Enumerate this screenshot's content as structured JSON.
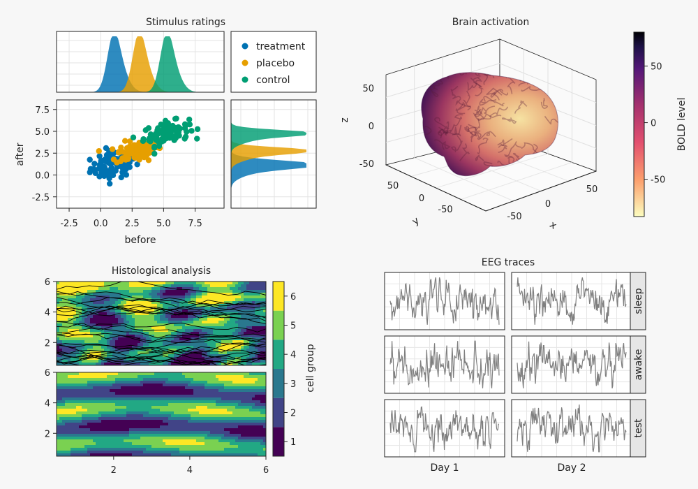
{
  "colors": {
    "treatment": "#0072b2",
    "placebo": "#e69f00",
    "control": "#009e73",
    "trace": "#7f7f7f",
    "strip_bg": "#e6e6e6"
  },
  "chart_data": [
    {
      "type": "scatter",
      "title": "Stimulus ratings",
      "xlabel": "before",
      "ylabel": "after",
      "xlim": [
        -3.5,
        9.8
      ],
      "ylim": [
        -3.8,
        8.6
      ],
      "xticks": [
        "-2.5",
        "0.0",
        "2.5",
        "5.0",
        "7.5"
      ],
      "yticks": [
        "-2.5",
        "0.0",
        "2.5",
        "5.0",
        "7.5"
      ],
      "legend": [
        "treatment",
        "placebo",
        "control"
      ],
      "legend_position": "top-right",
      "series": [
        {
          "name": "treatment",
          "x_mean": 1.0,
          "x_sd": 0.9,
          "y_mean": 1.2,
          "y_sd": 0.9,
          "n": 90
        },
        {
          "name": "placebo",
          "x_mean": 3.0,
          "x_sd": 0.9,
          "y_mean": 2.8,
          "y_sd": 0.7,
          "n": 90
        },
        {
          "name": "control",
          "x_mean": 5.2,
          "x_sd": 0.9,
          "y_mean": 4.8,
          "y_sd": 0.7,
          "n": 90
        }
      ]
    },
    {
      "type": "surface",
      "title": "Brain activation",
      "xlabel": "x",
      "ylabel": "y",
      "zlabel": "z",
      "xticks": [
        "-50",
        "0",
        "50"
      ],
      "yticks": [
        "-50",
        "0",
        "50"
      ],
      "zticks": [
        "-50",
        "0",
        "50"
      ],
      "colorbar": {
        "label": "BOLD level",
        "ticks": [
          "50",
          "0",
          "-50"
        ],
        "range": [
          -83,
          80
        ],
        "colormap": "magma-reversed"
      }
    },
    {
      "type": "heatmap",
      "title": "Histological analysis",
      "xticks": [
        "2",
        "4",
        "6"
      ],
      "yticks": [
        "2",
        "4",
        "6"
      ],
      "xlim": [
        0.5,
        6
      ],
      "ylim": [
        0.5,
        6
      ],
      "panels": 2,
      "colorbar": {
        "label": "cell group",
        "ticks": [
          "1",
          "2",
          "3",
          "4",
          "5",
          "6"
        ],
        "levels": 6
      }
    },
    {
      "type": "line",
      "title": "EEG traces",
      "columns": [
        "Day 1",
        "Day 2"
      ],
      "rows": [
        "sleep",
        "awake",
        "test"
      ],
      "points_per_trace": 180
    }
  ]
}
